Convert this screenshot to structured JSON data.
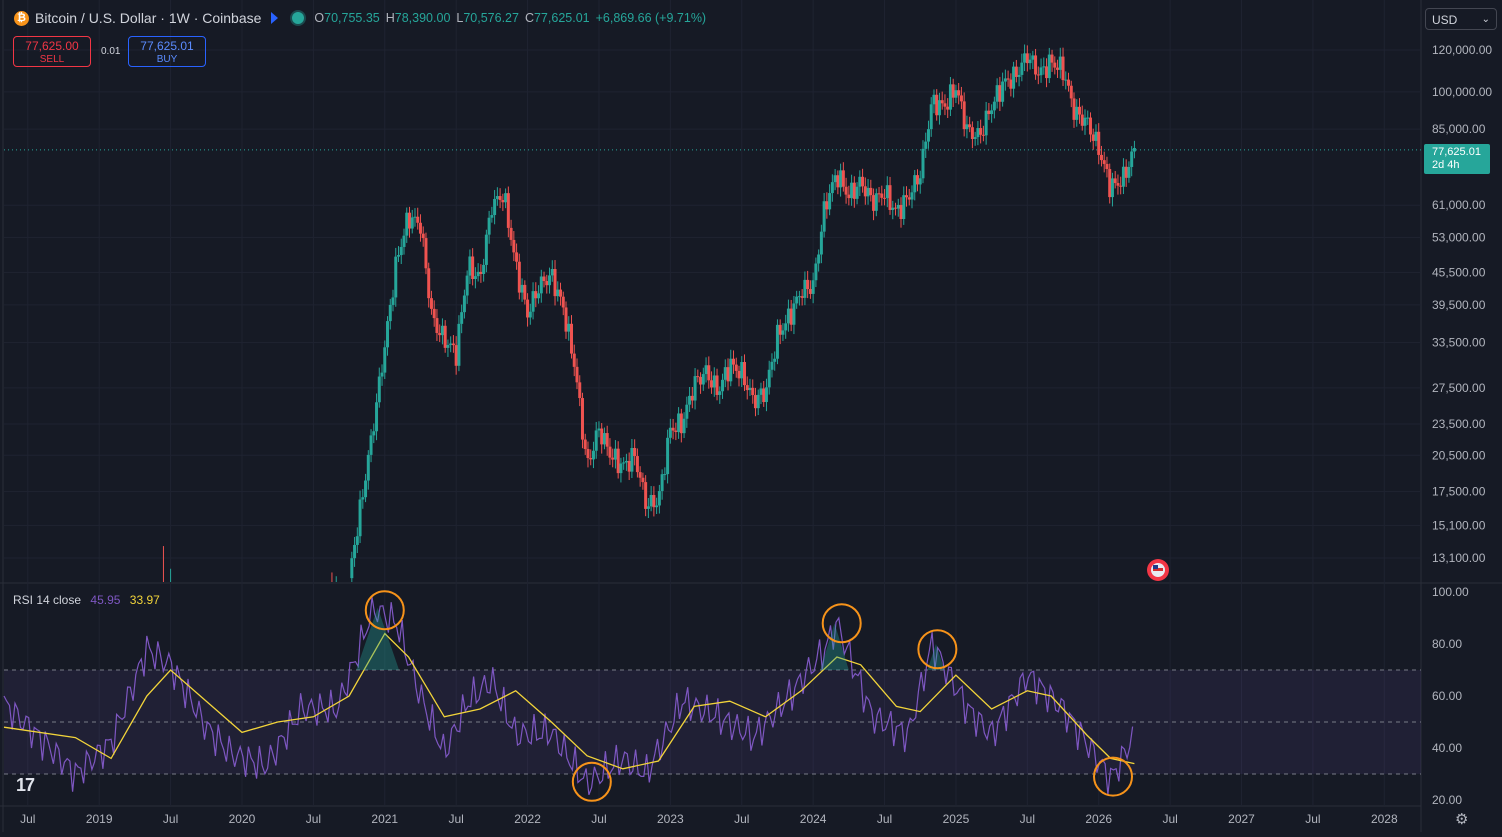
{
  "header": {
    "symbol": "Bitcoin / U.S. Dollar · 1W · Coinbase",
    "coin_icon": "bitcoin-icon",
    "ohlc": {
      "o_label": "O",
      "o": "70,755.35",
      "h_label": "H",
      "h": "78,390.00",
      "l_label": "L",
      "l": "70,576.27",
      "c_label": "C",
      "c": "77,625.01",
      "change": "+6,869.66 (+9.71%)"
    }
  },
  "trade": {
    "sell_price": "77,625.00",
    "sell_label": "SELL",
    "spread": "0.01",
    "buy_price": "77,625.01",
    "buy_label": "BUY"
  },
  "currency": "USD",
  "last_price": {
    "price": "77,625.01",
    "countdown": "2d 4h"
  },
  "rsi": {
    "title": "RSI 14 close",
    "rsi_value": "45.95",
    "ma_value": "33.97"
  },
  "colors": {
    "bg": "#161a25",
    "up": "#26a69a",
    "down": "#ef5350",
    "rsi": "#7e57c2",
    "rsi_ma": "#f2d43a",
    "highlight": "#f7931a"
  },
  "chart_data": [
    {
      "type": "candlestick",
      "title": "Bitcoin / U.S. Dollar · 1W · Coinbase",
      "y_scale": "log",
      "y_ticks": [
        "120,000.00",
        "100,000.00",
        "85,000.00",
        "61,000.00",
        "53,000.00",
        "45,500.00",
        "39,500.00",
        "33,500.00",
        "27,500.00",
        "23,500.00",
        "20,500.00",
        "17,500.00",
        "15,100.00",
        "13,100.00"
      ],
      "x_ticks": [
        "Jul",
        "2019",
        "Jul",
        "2020",
        "Jul",
        "2021",
        "Jul",
        "2022",
        "Jul",
        "2023",
        "Jul",
        "2024",
        "Jul",
        "2025",
        "Jul",
        "2026",
        "Jul",
        "2027",
        "Jul",
        "2028"
      ],
      "x_range": [
        "2018-05",
        "2028-04"
      ],
      "series": [
        {
          "values": [
            [
              "2020-10",
              12000
            ],
            [
              "2020-11",
              16500
            ],
            [
              "2020-12",
              23000
            ],
            [
              "2021-01",
              33000
            ],
            [
              "2021-02",
              48000
            ],
            [
              "2021-03",
              58000
            ],
            [
              "2021-04",
              56000
            ],
            [
              "2021-05",
              37000
            ],
            [
              "2021-06",
              34000
            ],
            [
              "2021-07",
              32000
            ],
            [
              "2021-08",
              47000
            ],
            [
              "2021-09",
              44000
            ],
            [
              "2021-10",
              61000
            ],
            [
              "2021-11",
              64000
            ],
            [
              "2021-12",
              47000
            ],
            [
              "2022-01",
              38000
            ],
            [
              "2022-02",
              43000
            ],
            [
              "2022-03",
              45000
            ],
            [
              "2022-04",
              39000
            ],
            [
              "2022-05",
              30000
            ],
            [
              "2022-06",
              19500
            ],
            [
              "2022-07",
              23000
            ],
            [
              "2022-08",
              20500
            ],
            [
              "2022-09",
              19500
            ],
            [
              "2022-10",
              20500
            ],
            [
              "2022-11",
              16500
            ],
            [
              "2022-12",
              16800
            ],
            [
              "2023-01",
              23000
            ],
            [
              "2023-02",
              23500
            ],
            [
              "2023-03",
              28000
            ],
            [
              "2023-04",
              29500
            ],
            [
              "2023-05",
              27000
            ],
            [
              "2023-06",
              30500
            ],
            [
              "2023-07",
              29300
            ],
            [
              "2023-08",
              26000
            ],
            [
              "2023-09",
              27000
            ],
            [
              "2023-10",
              34500
            ],
            [
              "2023-11",
              37500
            ],
            [
              "2023-12",
              42000
            ],
            [
              "2024-01",
              43000
            ],
            [
              "2024-02",
              61000
            ],
            [
              "2024-03",
              70000
            ],
            [
              "2024-04",
              63500
            ],
            [
              "2024-05",
              67500
            ],
            [
              "2024-06",
              62000
            ],
            [
              "2024-07",
              64500
            ],
            [
              "2024-08",
              59000
            ],
            [
              "2024-09",
              63300
            ],
            [
              "2024-10",
              70000
            ],
            [
              "2024-11",
              96000
            ],
            [
              "2024-12",
              93500
            ],
            [
              "2025-01",
              102000
            ],
            [
              "2025-02",
              84000
            ],
            [
              "2025-03",
              82500
            ],
            [
              "2025-04",
              94000
            ],
            [
              "2025-05",
              104000
            ],
            [
              "2025-06",
              107000
            ],
            [
              "2025-07",
              117500
            ],
            [
              "2025-08",
              108000
            ],
            [
              "2025-09",
              114000
            ],
            [
              "2025-10",
              110000
            ],
            [
              "2025-11",
              91000
            ],
            [
              "2025-12",
              88000
            ],
            [
              "2026-01",
              78000
            ],
            [
              "2026-02",
              66000
            ],
            [
              "2026-03",
              68000
            ],
            [
              "2026-04",
              77625
            ]
          ]
        }
      ],
      "last_price": 77625.01
    },
    {
      "type": "line",
      "title": "RSI 14 close",
      "y_ticks": [
        "100.00",
        "80.00",
        "60.00",
        "40.00",
        "20.00"
      ],
      "ylim": [
        20,
        100
      ],
      "bands": [
        30,
        50,
        70
      ],
      "series": [
        {
          "name": "RSI",
          "values": [
            [
              "2018-05",
              57
            ],
            [
              "2018-08",
              44
            ],
            [
              "2018-11",
              30
            ],
            [
              "2019-02",
              42
            ],
            [
              "2019-05",
              78
            ],
            [
              "2019-07",
              72
            ],
            [
              "2019-10",
              48
            ],
            [
              "2019-12",
              38
            ],
            [
              "2020-03",
              33
            ],
            [
              "2020-06",
              55
            ],
            [
              "2020-09",
              55
            ],
            [
              "2020-11",
              80
            ],
            [
              "2020-12",
              94
            ],
            [
              "2021-02",
              88
            ],
            [
              "2021-04",
              60
            ],
            [
              "2021-06",
              38
            ],
            [
              "2021-08",
              58
            ],
            [
              "2021-10",
              66
            ],
            [
              "2021-12",
              45
            ],
            [
              "2022-03",
              46
            ],
            [
              "2022-06",
              26
            ],
            [
              "2022-09",
              36
            ],
            [
              "2022-11",
              30
            ],
            [
              "2023-02",
              58
            ],
            [
              "2023-05",
              52
            ],
            [
              "2023-08",
              44
            ],
            [
              "2023-11",
              60
            ],
            [
              "2024-02",
              78
            ],
            [
              "2024-03",
              88
            ],
            [
              "2024-06",
              52
            ],
            [
              "2024-09",
              45
            ],
            [
              "2024-11",
              80
            ],
            [
              "2025-02",
              55
            ],
            [
              "2025-04",
              45
            ],
            [
              "2025-07",
              68
            ],
            [
              "2025-10",
              55
            ],
            [
              "2025-12",
              42
            ],
            [
              "2026-02",
              28
            ],
            [
              "2026-03",
              36
            ],
            [
              "2026-04",
              46
            ]
          ]
        },
        {
          "name": "RSI MA",
          "values": [
            [
              "2018-05",
              48
            ],
            [
              "2018-11",
              44
            ],
            [
              "2019-02",
              36
            ],
            [
              "2019-05",
              60
            ],
            [
              "2019-07",
              70
            ],
            [
              "2019-10",
              58
            ],
            [
              "2020-01",
              46
            ],
            [
              "2020-04",
              50
            ],
            [
              "2020-07",
              52
            ],
            [
              "2020-10",
              60
            ],
            [
              "2021-01",
              84
            ],
            [
              "2021-03",
              75
            ],
            [
              "2021-06",
              52
            ],
            [
              "2021-09",
              55
            ],
            [
              "2021-12",
              62
            ],
            [
              "2022-03",
              50
            ],
            [
              "2022-06",
              37
            ],
            [
              "2022-09",
              32
            ],
            [
              "2022-12",
              35
            ],
            [
              "2023-03",
              56
            ],
            [
              "2023-06",
              58
            ],
            [
              "2023-09",
              52
            ],
            [
              "2023-12",
              62
            ],
            [
              "2024-03",
              75
            ],
            [
              "2024-05",
              72
            ],
            [
              "2024-08",
              56
            ],
            [
              "2024-10",
              54
            ],
            [
              "2025-01",
              68
            ],
            [
              "2025-04",
              55
            ],
            [
              "2025-07",
              62
            ],
            [
              "2025-09",
              60
            ],
            [
              "2025-12",
              45
            ],
            [
              "2026-02",
              36
            ],
            [
              "2026-04",
              34
            ]
          ]
        }
      ],
      "annotations": [
        "2021-01 peak",
        "2022-06 low",
        "2024-03 peak",
        "2024-11 peak",
        "2026-03 low"
      ]
    }
  ]
}
